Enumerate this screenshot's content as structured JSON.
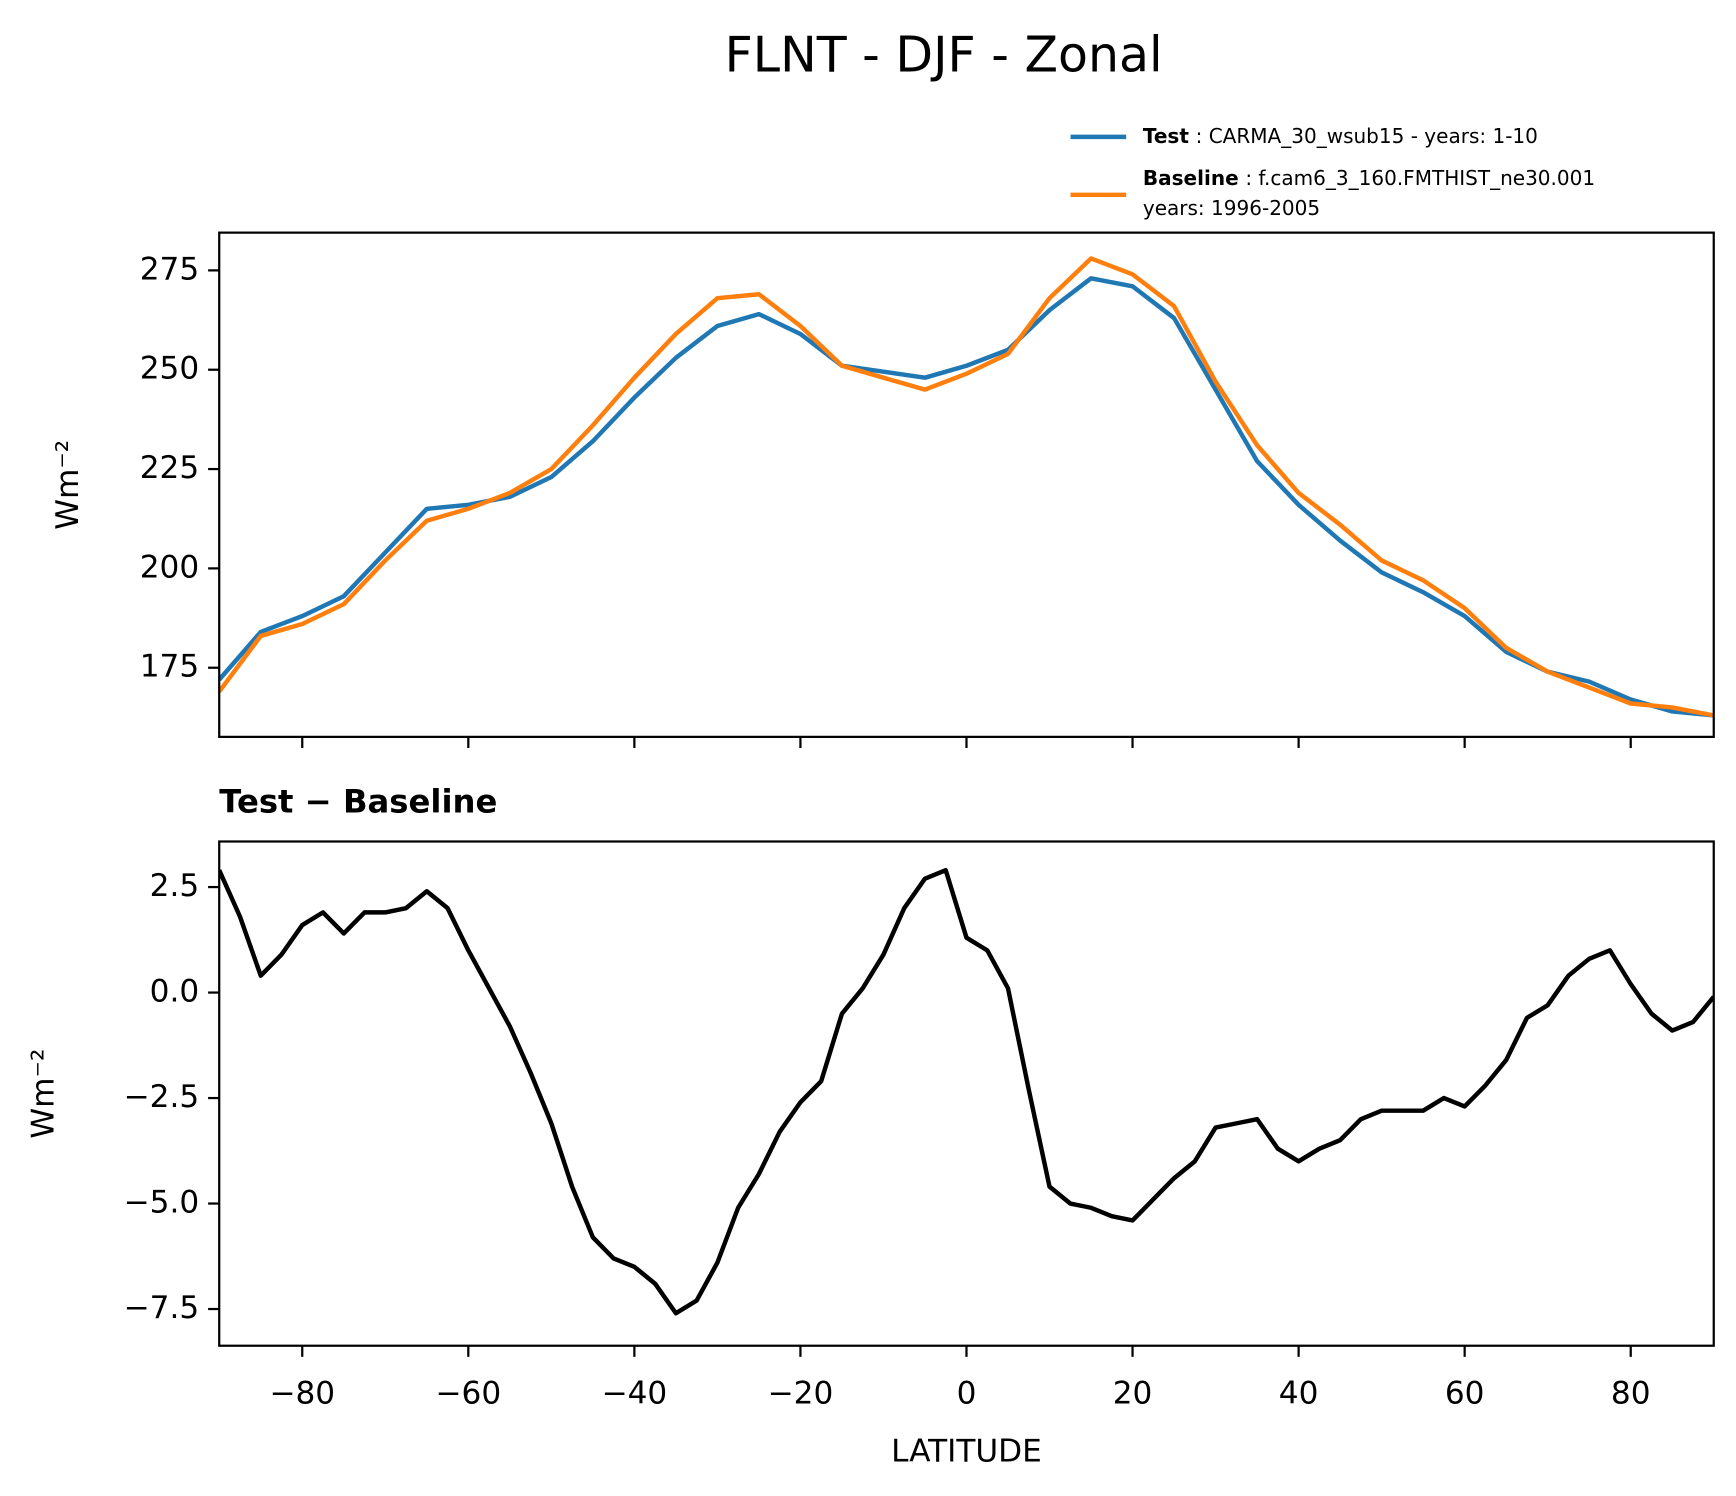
{
  "title": "FLNT - DJF - Zonal",
  "chart_data": [
    {
      "type": "line",
      "ylabel": "Wm⁻²",
      "x": [
        -90,
        -85,
        -80,
        -75,
        -70,
        -65,
        -60,
        -55,
        -50,
        -45,
        -40,
        -35,
        -30,
        -25,
        -20,
        -15,
        -10,
        -5,
        0,
        5,
        10,
        15,
        20,
        25,
        30,
        35,
        40,
        45,
        50,
        55,
        60,
        65,
        70,
        75,
        80,
        85,
        90
      ],
      "series": [
        {
          "name": "Test",
          "legend_lines": [
            ": CARMA_30_wsub15 - years: 1-10"
          ],
          "color": "#1f77b4",
          "values": [
            172,
            184,
            188,
            193,
            204,
            215,
            216,
            218,
            223,
            232,
            243,
            253,
            261,
            264,
            259,
            251,
            249.5,
            248,
            251,
            255,
            265,
            273,
            271,
            263,
            245,
            227,
            216,
            207,
            199,
            194,
            188,
            179,
            174,
            171.5,
            167,
            164,
            163
          ]
        },
        {
          "name": "Baseline",
          "legend_lines": [
            ": f.cam6_3_160.FMTHIST_ne30.001",
            "years: 1996-2005"
          ],
          "color": "#ff7f0e",
          "values": [
            169,
            183,
            186,
            191,
            202,
            212,
            215,
            219,
            225,
            236,
            248,
            259,
            268,
            269,
            261,
            251,
            248,
            245,
            249,
            254,
            268,
            278,
            274,
            266,
            247,
            231,
            219,
            211,
            202,
            197,
            190,
            180,
            174,
            170,
            166,
            165,
            163
          ]
        }
      ],
      "xlim": [
        -90,
        90
      ],
      "xticks": [
        {
          "value": -80,
          "label": "−80"
        },
        {
          "value": -60,
          "label": "−60"
        },
        {
          "value": -40,
          "label": "−40"
        },
        {
          "value": -20,
          "label": "−20"
        },
        0,
        20,
        40,
        60,
        80
      ],
      "show_xtick_labels": false,
      "ylim": [
        157.6,
        284.5
      ],
      "yticks": [
        175,
        200,
        225,
        250,
        275
      ]
    },
    {
      "type": "line",
      "title": "Test − Baseline",
      "xlabel": "LATITUDE",
      "ylabel": "Wm⁻²",
      "x": [
        -90,
        -87.5,
        -85,
        -82.5,
        -80,
        -77.5,
        -75,
        -72.5,
        -70,
        -67.5,
        -65,
        -62.5,
        -60,
        -57.5,
        -55,
        -52.5,
        -50,
        -47.5,
        -45,
        -42.5,
        -40,
        -37.5,
        -35,
        -32.5,
        -30,
        -27.5,
        -25,
        -22.5,
        -20,
        -17.5,
        -15,
        -12.5,
        -10,
        -7.5,
        -5,
        -2.5,
        0,
        2.5,
        5,
        7.5,
        10,
        12.5,
        15,
        17.5,
        20,
        22.5,
        25,
        27.5,
        30,
        32.5,
        35,
        37.5,
        40,
        42.5,
        45,
        47.5,
        50,
        52.5,
        55,
        57.5,
        60,
        62.5,
        65,
        67.5,
        70,
        72.5,
        75,
        77.5,
        80,
        82.5,
        85,
        87.5,
        90
      ],
      "series": [
        {
          "name": "Test − Baseline",
          "color": "#000000",
          "values": [
            2.9,
            1.8,
            0.4,
            0.9,
            1.6,
            1.9,
            1.4,
            1.9,
            1.9,
            2.0,
            2.4,
            2.0,
            1.0,
            0.1,
            -0.8,
            -1.9,
            -3.1,
            -4.6,
            -5.8,
            -6.3,
            -6.5,
            -6.9,
            -7.6,
            -7.3,
            -6.4,
            -5.1,
            -4.3,
            -3.3,
            -2.6,
            -2.1,
            -0.5,
            0.1,
            0.9,
            2.0,
            2.7,
            2.9,
            1.3,
            1.0,
            0.1,
            -2.3,
            -4.6,
            -5.0,
            -5.1,
            -5.3,
            -5.4,
            -4.9,
            -4.4,
            -4.0,
            -3.2,
            -3.1,
            -3.0,
            -3.7,
            -4.0,
            -3.7,
            -3.5,
            -3.0,
            -2.8,
            -2.8,
            -2.8,
            -2.5,
            -2.7,
            -2.2,
            -1.6,
            -0.6,
            -0.3,
            0.4,
            0.8,
            1.0,
            0.2,
            -0.5,
            -0.9,
            -0.7,
            -0.1
          ]
        }
      ],
      "xlim": [
        -90,
        90
      ],
      "xticks": [
        {
          "value": -80,
          "label": "−80"
        },
        {
          "value": -60,
          "label": "−60"
        },
        {
          "value": -40,
          "label": "−40"
        },
        {
          "value": -20,
          "label": "−20"
        },
        0,
        20,
        40,
        60,
        80
      ],
      "show_xtick_labels": true,
      "ylim": [
        -8.37,
        3.58
      ],
      "yticks": [
        {
          "value": 2.5,
          "label": "2.5"
        },
        {
          "value": 0,
          "label": "0.0"
        },
        {
          "value": -2.5,
          "label": "−2.5"
        },
        {
          "value": -5,
          "label": "−5.0"
        },
        {
          "value": -7.5,
          "label": "−7.5"
        }
      ]
    }
  ]
}
